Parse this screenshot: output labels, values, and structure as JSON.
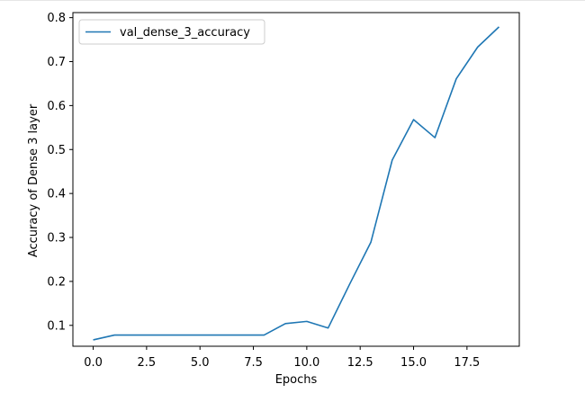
{
  "chart_data": {
    "type": "line",
    "title": "",
    "xlabel": "Epochs",
    "ylabel": "Accuracy of Dense 3 layer",
    "xlim": [
      -0.95,
      19.95
    ],
    "ylim": [
      0.0525,
      0.8115
    ],
    "x_ticks": [
      "0.0",
      "2.5",
      "5.0",
      "7.5",
      "10.0",
      "12.5",
      "15.0",
      "17.5"
    ],
    "y_ticks": [
      "0.1",
      "0.2",
      "0.3",
      "0.4",
      "0.5",
      "0.6",
      "0.7",
      "0.8"
    ],
    "grid": false,
    "legend_position": "top-left",
    "series": [
      {
        "name": "val_dense_3_accuracy",
        "color": "#1f77b4",
        "x": [
          0,
          1,
          2,
          3,
          4,
          5,
          6,
          7,
          8,
          9,
          10,
          11,
          12,
          13,
          14,
          15,
          16,
          17,
          18,
          19
        ],
        "y": [
          0.067,
          0.078,
          0.078,
          0.078,
          0.078,
          0.078,
          0.078,
          0.078,
          0.078,
          0.104,
          0.109,
          0.094,
          0.193,
          0.289,
          0.476,
          0.568,
          0.527,
          0.661,
          0.733,
          0.779
        ]
      }
    ]
  }
}
